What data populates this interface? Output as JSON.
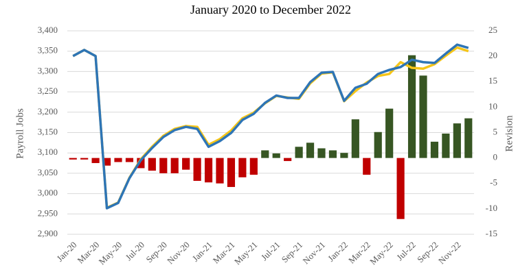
{
  "chart_data": {
    "type": "combo",
    "title": "January 2020 to December 2022",
    "y_label": "Payroll Jobs",
    "y2_label": "Revision",
    "categories": [
      "Jan-20",
      null,
      "Mar-20",
      null,
      "May-20",
      null,
      "Jul-20",
      null,
      "Sep-20",
      null,
      "Nov-20",
      null,
      "Jan-21",
      null,
      "Mar-21",
      null,
      "May-21",
      null,
      "Jul-21",
      null,
      "Sep-21",
      null,
      "Nov-21",
      null,
      "Jan-22",
      null,
      "Mar-22",
      null,
      "May-22",
      null,
      "Jul-22",
      null,
      "Sep-22",
      null,
      "Nov-22",
      null
    ],
    "ylim": [
      2900,
      3400
    ],
    "yticks": [
      {
        "value": 2900,
        "label": "2,900"
      },
      {
        "value": 2950,
        "label": "2,950"
      },
      {
        "value": 3000,
        "label": "3,000"
      },
      {
        "value": 3050,
        "label": "3,050"
      },
      {
        "value": 3100,
        "label": "3,100"
      },
      {
        "value": 3150,
        "label": "3,150"
      },
      {
        "value": 3200,
        "label": "3,200"
      },
      {
        "value": 3250,
        "label": "3,250"
      },
      {
        "value": 3300,
        "label": "3,300"
      },
      {
        "value": 3350,
        "label": "3,350"
      },
      {
        "value": 3400,
        "label": "3,400"
      }
    ],
    "y2lim": [
      -15,
      25
    ],
    "y2ticks": [
      -15,
      -10,
      -5,
      0,
      5,
      10,
      15,
      20,
      25
    ],
    "grid": true,
    "series": [
      {
        "type": "bar",
        "axis": "y2",
        "positive_color": "#375623",
        "negative_color": "#c00000",
        "values": [
          -0.3,
          -0.3,
          -1,
          -1.5,
          -0.8,
          -0.8,
          -2,
          -2.5,
          -3,
          -3,
          -2.3,
          -4.5,
          -4.8,
          -5,
          -5.7,
          -3.8,
          -3.3,
          1.5,
          0.9,
          -0.6,
          2.2,
          3,
          1.9,
          1.5,
          1,
          7.6,
          -3.3,
          5.1,
          9.7,
          -12,
          20.2,
          16.2,
          3.2,
          4.8,
          6.8,
          7.8
        ]
      },
      {
        "type": "line",
        "axis": "y",
        "color": "#f5c518",
        "values": [
          3338,
          3353,
          3338,
          2965,
          2978,
          3039,
          3084,
          3115,
          3142,
          3159,
          3166,
          3164,
          3120,
          3134,
          3155,
          3185,
          3199,
          3222,
          3240,
          3236,
          3233,
          3271,
          3295,
          3298,
          3227,
          3252,
          3273,
          3289,
          3294,
          3323,
          3309,
          3307,
          3318,
          3339,
          3359,
          3350
        ]
      },
      {
        "type": "line",
        "axis": "y",
        "color": "#2e75b6",
        "values": [
          3338,
          3353,
          3338,
          2964,
          2977,
          3038,
          3082,
          3112,
          3139,
          3156,
          3164,
          3159,
          3115,
          3129,
          3149,
          3181,
          3196,
          3223,
          3241,
          3235,
          3235,
          3274,
          3297,
          3299,
          3228,
          3260,
          3270,
          3294,
          3304,
          3311,
          3329,
          3323,
          3321,
          3344,
          3366,
          3358
        ]
      }
    ]
  }
}
